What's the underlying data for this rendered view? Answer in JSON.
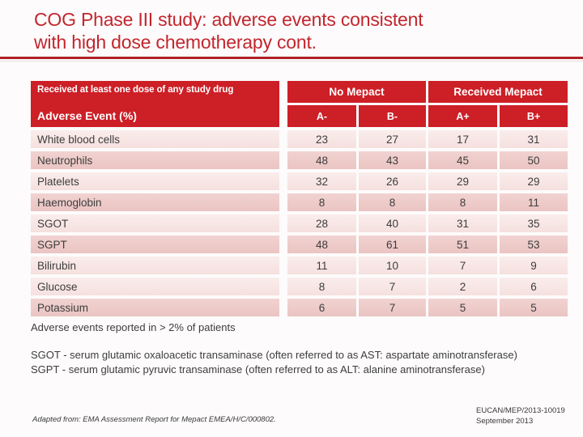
{
  "title": {
    "line1": "COG Phase III study: adverse events consistent",
    "line2": "with high dose chemotherapy cont."
  },
  "table": {
    "header": {
      "left_top": "Received at least one dose of any study drug",
      "left_bottom": "Adverse Event (%)",
      "groups": [
        {
          "label": "No Mepact"
        },
        {
          "label": "Received Mepact"
        }
      ],
      "columns": [
        "A-",
        "B-",
        "A+",
        "B+"
      ]
    },
    "rows": [
      {
        "label": "White blood cells",
        "values": [
          "23",
          "27",
          "17",
          "31"
        ],
        "shade": "light"
      },
      {
        "label": "Neutrophils",
        "values": [
          "48",
          "43",
          "45",
          "50"
        ],
        "shade": "dark"
      },
      {
        "label": "Platelets",
        "values": [
          "32",
          "26",
          "29",
          "29"
        ],
        "shade": "light"
      },
      {
        "label": "Haemoglobin",
        "values": [
          "8",
          "8",
          "8",
          "11"
        ],
        "shade": "dark"
      },
      {
        "label": "SGOT",
        "values": [
          "28",
          "40",
          "31",
          "35"
        ],
        "shade": "light"
      },
      {
        "label": "SGPT",
        "values": [
          "48",
          "61",
          "51",
          "53"
        ],
        "shade": "dark"
      },
      {
        "label": "Bilirubin",
        "values": [
          "11",
          "10",
          "7",
          "9"
        ],
        "shade": "light"
      },
      {
        "label": "Glucose",
        "values": [
          "8",
          "7",
          "2",
          "6"
        ],
        "shade": "light"
      },
      {
        "label": "Potassium",
        "values": [
          "6",
          "7",
          "5",
          "5"
        ],
        "shade": "dark"
      }
    ]
  },
  "notes": {
    "reported": "Adverse events reported in > 2% of patients",
    "sgot": "SGOT - serum glutamic oxaloacetic transaminase (often referred to as AST: aspartate aminotransferase)",
    "sgpt": "SGPT - serum glutamic pyruvic transaminase (often referred to as ALT: alanine aminotransferase)"
  },
  "footer": {
    "source": "Adapted from: EMA Assessment Report for Mepact EMEA/H/C/000802.",
    "reference": "EUCAN/MEP/2013-10019",
    "date": "September 2013"
  },
  "colors": {
    "accent_red": "#CD1F26",
    "title_red": "#C2262E",
    "rule_red": "#B02025",
    "row_light": "#F7E5E4",
    "row_dark": "#EECAC8",
    "body_text": "#3D3D3D",
    "header_text": "#FFFFFF"
  }
}
